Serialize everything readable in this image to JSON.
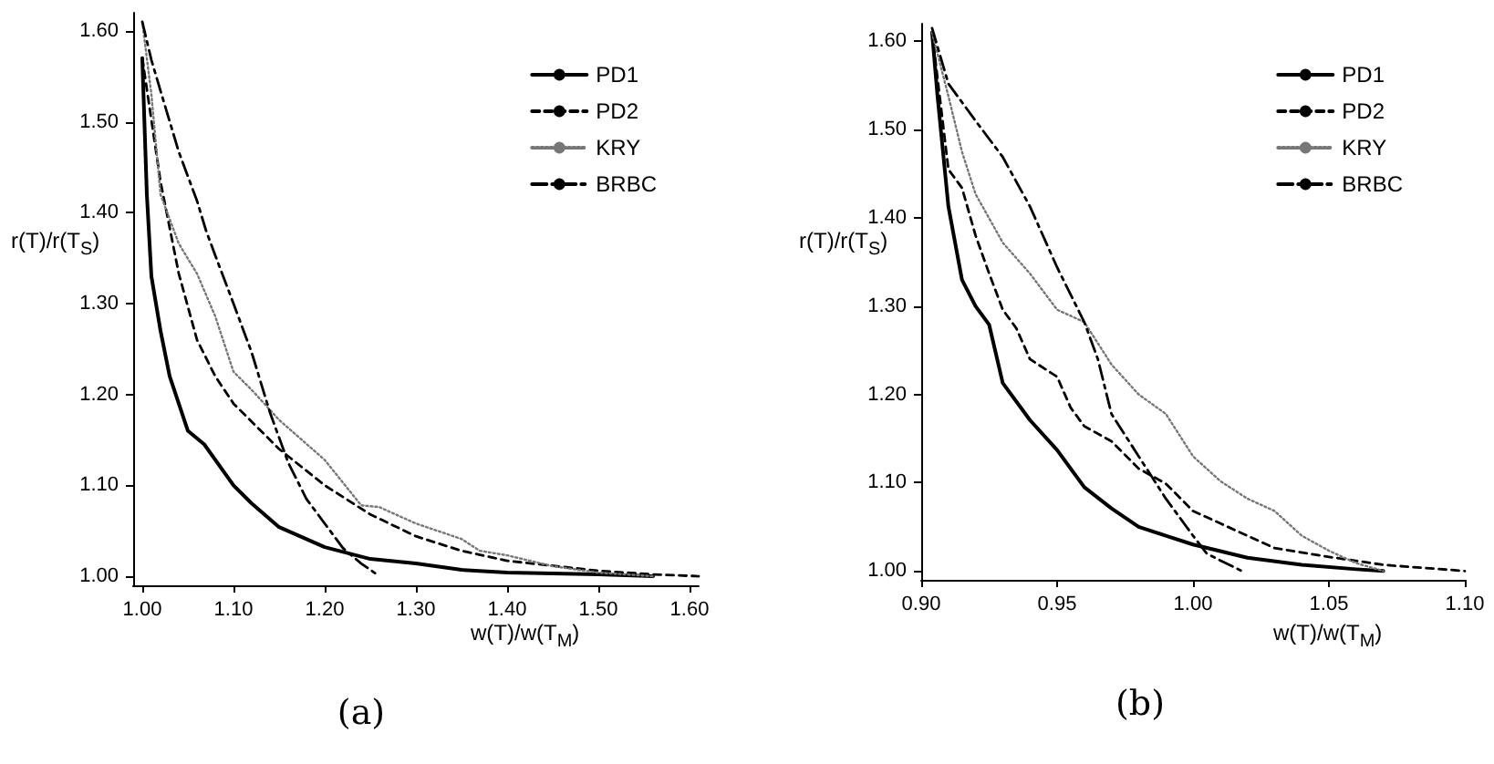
{
  "chart_data": [
    {
      "type": "line",
      "xlabel": "w(T)/w(T$_{M}$)",
      "ylabel": "r(T)/r(T$_{S}$)",
      "annotations": [
        "(a)"
      ],
      "legend": "top right",
      "grid": false,
      "marker": "none",
      "xlim": [
        0.99,
        1.61
      ],
      "ylim": [
        0.99,
        1.62
      ],
      "xticks": [
        {
          "value": 1.0,
          "label": "1.00"
        },
        {
          "value": 1.1,
          "label": "1.10"
        },
        {
          "value": 1.2,
          "label": "1.20"
        },
        {
          "value": 1.3,
          "label": "1.30"
        },
        {
          "value": 1.4,
          "label": "1.40"
        },
        {
          "value": 1.5,
          "label": "1.50"
        },
        {
          "value": 1.6,
          "label": "1.60"
        }
      ],
      "yticks": [
        {
          "value": 1.0,
          "label": "1.00"
        },
        {
          "value": 1.1,
          "label": "1.10"
        },
        {
          "value": 1.2,
          "label": "1.20"
        },
        {
          "value": 1.3,
          "label": "1.30"
        },
        {
          "value": 1.4,
          "label": "1.40"
        },
        {
          "value": 1.5,
          "label": "1.50"
        },
        {
          "value": 1.6,
          "label": "1.60"
        }
      ],
      "series": [
        {
          "name": "PD1",
          "color": "#000000",
          "line_style": "solid",
          "x": [
            1.0,
            1.005,
            1.01,
            1.02,
            1.03,
            1.04,
            1.05,
            1.068,
            1.1,
            1.12,
            1.15,
            1.2,
            1.25,
            1.3,
            1.35,
            1.4,
            1.5,
            1.56
          ],
          "values": [
            1.57,
            1.42,
            1.33,
            1.27,
            1.22,
            1.19,
            1.16,
            1.145,
            1.1,
            1.08,
            1.054,
            1.032,
            1.019,
            1.014,
            1.007,
            1.004,
            1.002,
            1.0
          ]
        },
        {
          "name": "PD2",
          "color": "#000000",
          "line_style": "dashed",
          "x": [
            1.0,
            1.02,
            1.04,
            1.06,
            1.08,
            1.1,
            1.15,
            1.2,
            1.25,
            1.3,
            1.35,
            1.4,
            1.5,
            1.56,
            1.61
          ],
          "values": [
            1.57,
            1.434,
            1.333,
            1.26,
            1.22,
            1.19,
            1.14,
            1.1,
            1.068,
            1.044,
            1.028,
            1.017,
            1.006,
            1.002,
            1.0
          ]
        },
        {
          "name": "KRY",
          "color": "#777777",
          "line_style": "dotted",
          "x": [
            1.0,
            1.01,
            1.02,
            1.04,
            1.06,
            1.08,
            1.1,
            1.12,
            1.15,
            1.2,
            1.24,
            1.26,
            1.3,
            1.35,
            1.37,
            1.4,
            1.45,
            1.5,
            1.56
          ],
          "values": [
            1.61,
            1.53,
            1.42,
            1.366,
            1.333,
            1.286,
            1.225,
            1.205,
            1.172,
            1.128,
            1.078,
            1.076,
            1.058,
            1.041,
            1.028,
            1.023,
            1.011,
            1.004,
            1.0
          ]
        },
        {
          "name": "BRBC",
          "color": "#000000",
          "line_style": "dashdot",
          "x": [
            1.0,
            1.01,
            1.02,
            1.04,
            1.06,
            1.07,
            1.08,
            1.1,
            1.12,
            1.14,
            1.16,
            1.18,
            1.2,
            1.22,
            1.24,
            1.26
          ],
          "values": [
            1.61,
            1.568,
            1.534,
            1.467,
            1.413,
            1.38,
            1.353,
            1.3,
            1.246,
            1.18,
            1.125,
            1.085,
            1.058,
            1.031,
            1.014,
            1.0
          ]
        }
      ]
    },
    {
      "type": "line",
      "xlabel": "w(T)/w(T$_{M}$)",
      "ylabel": "r(T)/r(T$_{S}$)",
      "annotations": [
        "(b)"
      ],
      "legend": "top right",
      "grid": false,
      "marker": "none",
      "xlim": [
        0.9,
        1.1
      ],
      "ylim": [
        0.99,
        1.62
      ],
      "xticks": [
        {
          "value": 0.9,
          "label": "0.90"
        },
        {
          "value": 0.95,
          "label": "0.95"
        },
        {
          "value": 1.0,
          "label": "1.00"
        },
        {
          "value": 1.05,
          "label": "1.05"
        },
        {
          "value": 1.1,
          "label": "1.10"
        }
      ],
      "yticks": [
        {
          "value": 1.0,
          "label": "1.00"
        },
        {
          "value": 1.1,
          "label": "1.10"
        },
        {
          "value": 1.2,
          "label": "1.20"
        },
        {
          "value": 1.3,
          "label": "1.30"
        },
        {
          "value": 1.4,
          "label": "1.40"
        },
        {
          "value": 1.5,
          "label": "1.50"
        },
        {
          "value": 1.6,
          "label": "1.60"
        }
      ],
      "series": [
        {
          "name": "PD1",
          "color": "#000000",
          "line_style": "solid",
          "x": [
            0.904,
            0.906,
            0.91,
            0.915,
            0.92,
            0.925,
            0.93,
            0.94,
            0.95,
            0.96,
            0.97,
            0.98,
            0.99,
            1.0,
            1.02,
            1.04,
            1.06,
            1.07
          ],
          "values": [
            1.61,
            1.538,
            1.413,
            1.33,
            1.3,
            1.279,
            1.213,
            1.171,
            1.137,
            1.095,
            1.071,
            1.05,
            1.04,
            1.03,
            1.015,
            1.007,
            1.002,
            1.0
          ]
        },
        {
          "name": "PD2",
          "color": "#000000",
          "line_style": "dashed",
          "x": [
            0.904,
            0.91,
            0.915,
            0.92,
            0.925,
            0.93,
            0.935,
            0.94,
            0.95,
            0.955,
            0.96,
            0.97,
            0.98,
            0.99,
            1.0,
            1.01,
            1.02,
            1.03,
            1.05,
            1.07,
            1.1
          ],
          "values": [
            1.61,
            1.455,
            1.434,
            1.38,
            1.337,
            1.296,
            1.275,
            1.24,
            1.22,
            1.185,
            1.164,
            1.147,
            1.116,
            1.099,
            1.068,
            1.054,
            1.04,
            1.026,
            1.016,
            1.007,
            1.0
          ]
        },
        {
          "name": "KRY",
          "color": "#777777",
          "line_style": "dotted",
          "x": [
            0.904,
            0.91,
            0.915,
            0.92,
            0.93,
            0.94,
            0.95,
            0.96,
            0.97,
            0.98,
            0.99,
            1.0,
            1.01,
            1.02,
            1.03,
            1.04,
            1.05,
            1.06,
            1.07
          ],
          "values": [
            1.61,
            1.538,
            1.475,
            1.427,
            1.372,
            1.337,
            1.296,
            1.282,
            1.234,
            1.2,
            1.178,
            1.13,
            1.102,
            1.082,
            1.068,
            1.04,
            1.023,
            1.009,
            1.0
          ]
        },
        {
          "name": "BRBC",
          "color": "#000000",
          "line_style": "dashdot",
          "x": [
            0.904,
            0.91,
            0.92,
            0.93,
            0.94,
            0.95,
            0.96,
            0.965,
            0.97,
            0.98,
            0.99,
            1.0,
            1.005,
            1.01,
            1.018
          ],
          "values": [
            1.615,
            1.552,
            1.51,
            1.469,
            1.413,
            1.344,
            1.282,
            1.24,
            1.178,
            1.13,
            1.082,
            1.04,
            1.02,
            1.012,
            1.0
          ]
        }
      ]
    }
  ]
}
